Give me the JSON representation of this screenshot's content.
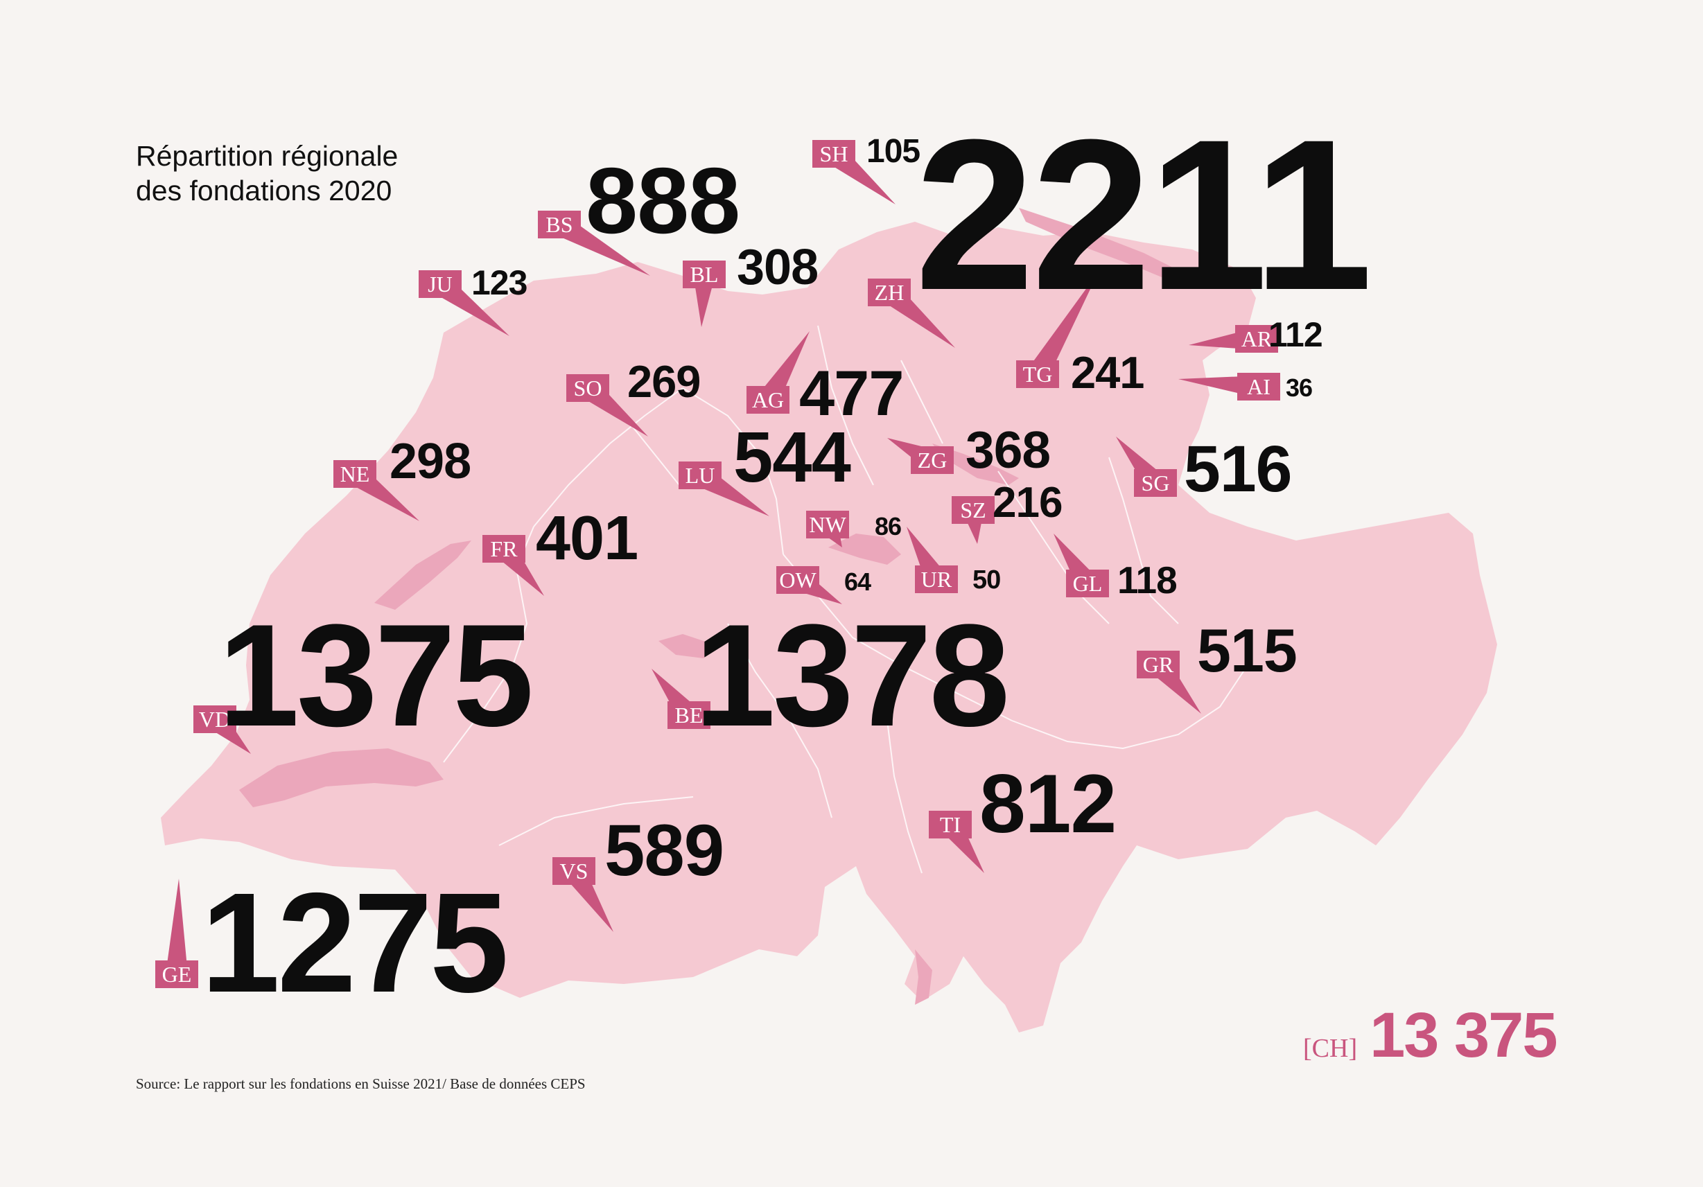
{
  "title_line1": "Répartition régionale",
  "title_line2": "des fondations 2020",
  "source": "Source: Le rapport sur les fondations en Suisse 2021/ Base de données CEPS",
  "total": {
    "code": "[CH]",
    "value": "13 375"
  },
  "colors": {
    "map_fill": "#f5c9d2",
    "lake": "#eba7bb",
    "tag": "#c9557e",
    "background": "#f7f4f2"
  },
  "cantons": [
    {
      "code": "GE",
      "value": 1275
    },
    {
      "code": "VD",
      "value": 1375
    },
    {
      "code": "BE",
      "value": 1378
    },
    {
      "code": "ZH",
      "value": 2211
    },
    {
      "code": "BS",
      "value": 888
    },
    {
      "code": "TI",
      "value": 812
    },
    {
      "code": "VS",
      "value": 589
    },
    {
      "code": "LU",
      "value": 544
    },
    {
      "code": "SG",
      "value": 516
    },
    {
      "code": "GR",
      "value": 515
    },
    {
      "code": "AG",
      "value": 477
    },
    {
      "code": "FR",
      "value": 401
    },
    {
      "code": "ZG",
      "value": 368
    },
    {
      "code": "BL",
      "value": 308
    },
    {
      "code": "NE",
      "value": 298
    },
    {
      "code": "SO",
      "value": 269
    },
    {
      "code": "TG",
      "value": 241
    },
    {
      "code": "SZ",
      "value": 216
    },
    {
      "code": "JU",
      "value": 123
    },
    {
      "code": "GL",
      "value": 118
    },
    {
      "code": "AR",
      "value": 112
    },
    {
      "code": "SH",
      "value": 105
    },
    {
      "code": "NW",
      "value": 86
    },
    {
      "code": "OW",
      "value": 64
    },
    {
      "code": "UR",
      "value": 50
    },
    {
      "code": "AI",
      "value": 36
    }
  ]
}
